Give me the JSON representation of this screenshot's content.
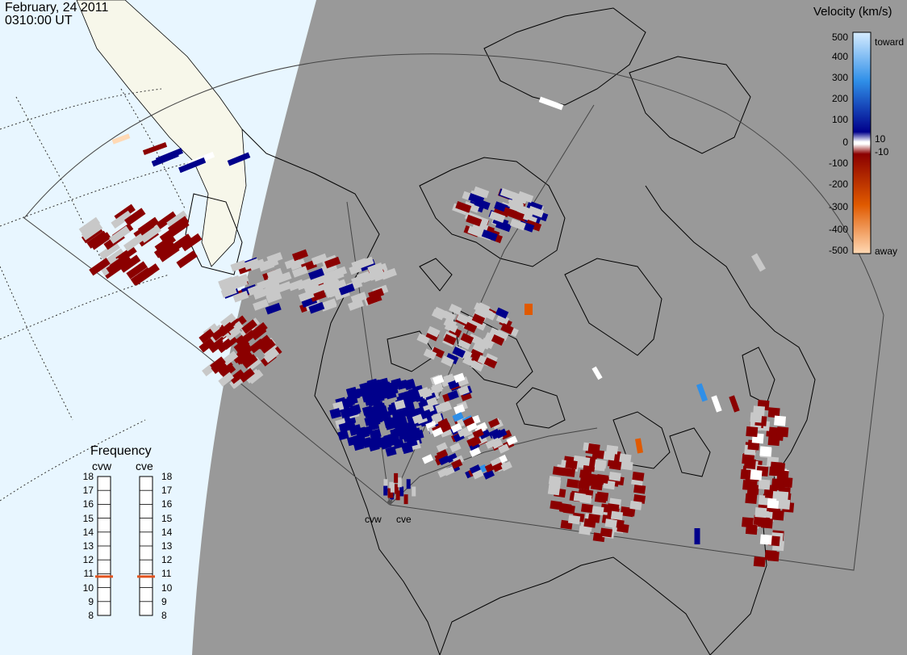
{
  "header": {
    "date": "February, 24 2011",
    "time": "0310:00 UT"
  },
  "velocity_scale": {
    "title": "Velocity (km/s)",
    "ticks": [
      "500",
      "400",
      "300",
      "200",
      "100",
      "10",
      "0",
      "-10",
      "-100",
      "-200",
      "-300",
      "-400",
      "-500"
    ],
    "toward_label": "toward",
    "away_label": "away",
    "colors": {
      "toward_fast": "#d6ecff",
      "toward_mid": "#2f8fe8",
      "toward_slow": "#00008b",
      "zero": "#ffffff",
      "away_slow": "#8b0000",
      "away_mid": "#e05a00",
      "away_fast": "#ffd9b5",
      "ground_scatter": "#c8c8c8"
    }
  },
  "frequency": {
    "title": "Frequency",
    "radars": [
      "cvw",
      "cve"
    ],
    "ticks": [
      "18",
      "17",
      "16",
      "15",
      "14",
      "13",
      "12",
      "11",
      "10",
      "9",
      "8"
    ],
    "marker_color": "#e0521e",
    "current_mhz": {
      "cvw": 10.8,
      "cve": 10.8
    }
  },
  "map": {
    "day_color": "#e8f6ff",
    "land_day_color": "#f7f7ea",
    "night_color": "#999999",
    "radar_labels": [
      "cvw",
      "cve"
    ]
  }
}
